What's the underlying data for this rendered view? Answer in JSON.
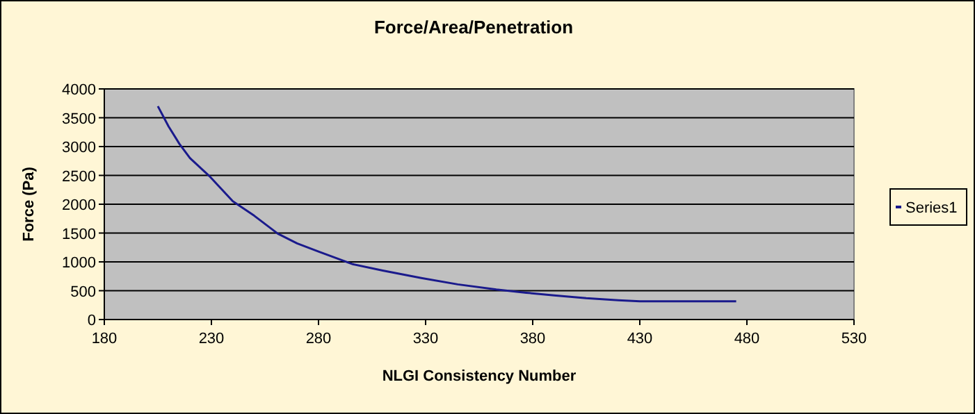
{
  "chart_data": {
    "type": "line",
    "title": "Force/Area/Penetration",
    "xlabel": "NLGI Consistency Number",
    "ylabel": "Force (Pa)",
    "x": [
      205,
      210,
      215,
      220,
      229,
      240,
      250,
      261,
      270,
      280,
      296,
      310,
      328,
      345,
      363,
      377,
      390,
      405,
      420,
      430,
      450,
      475
    ],
    "series": [
      {
        "name": "Series1",
        "color": "#1a1a8c",
        "values": [
          3700,
          3350,
          3050,
          2800,
          2490,
          2050,
          1800,
          1490,
          1320,
          1180,
          960,
          850,
          720,
          610,
          520,
          465,
          420,
          370,
          335,
          315,
          315,
          315
        ]
      }
    ],
    "xlim": [
      180,
      530
    ],
    "xticks": [
      180,
      230,
      280,
      330,
      380,
      430,
      480,
      530
    ],
    "ylim": [
      0,
      4000
    ],
    "yticks": [
      0,
      500,
      1000,
      1500,
      2000,
      2500,
      3000,
      3500,
      4000
    ],
    "grid": "y",
    "legend": "right",
    "marker": "none",
    "line_style": "solid"
  }
}
